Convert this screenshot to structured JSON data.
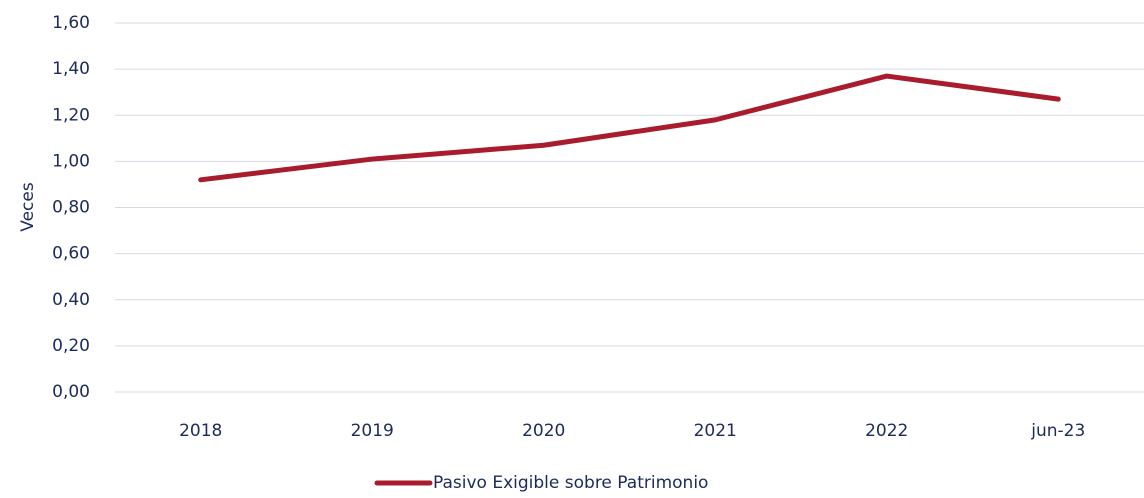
{
  "chart_data": {
    "type": "line",
    "y_label": "Veces",
    "categories": [
      "2018",
      "2019",
      "2020",
      "2021",
      "2022",
      "jun-23"
    ],
    "series": [
      {
        "name": "Pasivo Exigible sobre Patrimonio",
        "color": "#a81c2e",
        "values": [
          0.92,
          1.01,
          1.07,
          1.18,
          1.37,
          1.27
        ]
      }
    ],
    "ylim": [
      0,
      1.6
    ],
    "yticks": [
      {
        "value": 0,
        "label": "0,00"
      },
      {
        "value": 0.2,
        "label": "0,20"
      },
      {
        "value": 0.4,
        "label": "0,40"
      },
      {
        "value": 0.6,
        "label": "0,60"
      },
      {
        "value": 0.8,
        "label": "0,80"
      },
      {
        "value": 1.0,
        "label": "1,00"
      },
      {
        "value": 1.2,
        "label": "1,20"
      },
      {
        "value": 1.4,
        "label": "1,40"
      },
      {
        "value": 1.6,
        "label": "1,60"
      }
    ],
    "grid": true,
    "legend": "bottom"
  }
}
